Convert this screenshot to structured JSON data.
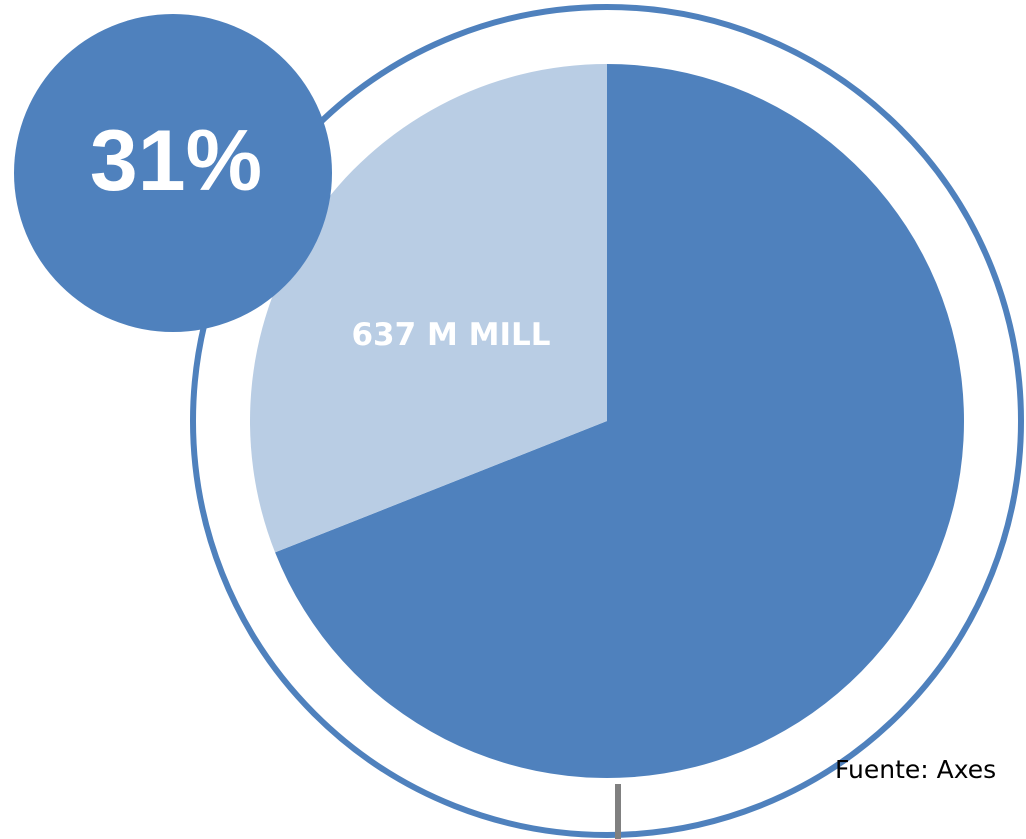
{
  "chart_data": {
    "type": "pie",
    "slices": [
      {
        "value": 69,
        "color": "#4f81bd"
      },
      {
        "value": 31,
        "label": "637 M MILL",
        "color": "#b9cde4"
      }
    ]
  },
  "badge": {
    "text": "31%",
    "color": "#4f81bd"
  },
  "source": {
    "text": "Fuente: Axes"
  },
  "colors": {
    "ring": "#4f81bd",
    "label_text": "#ffffff",
    "source_text": "#000000",
    "tick": "#808080"
  }
}
